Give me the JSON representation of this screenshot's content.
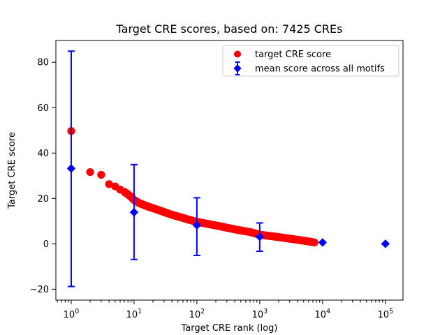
{
  "figure": {
    "background": "#ffffff"
  },
  "chart_data": {
    "type": "scatter",
    "title": "Target CRE scores, based on: 7425 CREs",
    "xlabel": "Target CRE rank (log)",
    "ylabel": "Target CRE score",
    "x_scale": "log",
    "y_scale": "linear",
    "xlim_log10": [
      -0.244,
      5.28
    ],
    "ylim": [
      -24.8,
      89.6
    ],
    "x_major_ticks": [
      1,
      10,
      100,
      1000,
      10000,
      100000
    ],
    "x_major_tick_exponents": [
      0,
      1,
      2,
      3,
      4,
      5
    ],
    "y_ticks": [
      -20,
      0,
      20,
      40,
      60,
      80
    ],
    "grid": false,
    "legend": {
      "position": "upper-right-inside",
      "entries": [
        {
          "label": "target CRE score",
          "marker": "circle",
          "color": "#ff0000"
        },
        {
          "label": "mean score across all motifs",
          "marker": "diamond-errorbar",
          "color": "#0000ff"
        }
      ]
    },
    "series": [
      {
        "name": "target CRE score",
        "kind": "scatter",
        "marker": "circle",
        "color": "#ff0000",
        "anchor_points": [
          [
            1,
            49.7
          ],
          [
            2,
            31.6
          ],
          [
            3,
            30.4
          ],
          [
            4,
            26.3
          ],
          [
            5,
            25.3
          ],
          [
            6,
            23.9
          ],
          [
            7,
            22.9
          ],
          [
            8,
            21.8
          ],
          [
            9,
            20.6
          ],
          [
            10,
            19.3
          ],
          [
            12,
            18.0
          ],
          [
            15,
            16.9
          ],
          [
            20,
            15.7
          ],
          [
            25,
            14.8
          ],
          [
            30,
            14.0
          ],
          [
            40,
            12.8
          ],
          [
            55,
            11.7
          ],
          [
            75,
            10.6
          ],
          [
            100,
            9.7
          ],
          [
            140,
            8.9
          ],
          [
            200,
            8.1
          ],
          [
            300,
            7.1
          ],
          [
            450,
            6.1
          ],
          [
            700,
            5.2
          ],
          [
            1000,
            4.0
          ],
          [
            1500,
            3.4
          ],
          [
            2200,
            2.8
          ],
          [
            3300,
            2.1
          ],
          [
            5000,
            1.4
          ],
          [
            7425,
            0.6
          ]
        ],
        "dense_band_range": [
          7,
          7425
        ],
        "total_points": 7425
      },
      {
        "name": "mean score across all motifs",
        "kind": "errorbar",
        "marker": "diamond",
        "color": "#0000ff",
        "points": [
          {
            "x": 1,
            "mean": 33.2,
            "lo": -18.8,
            "hi": 84.9
          },
          {
            "x": 10,
            "mean": 13.9,
            "lo": -6.9,
            "hi": 34.9
          },
          {
            "x": 100,
            "mean": 8.2,
            "lo": -5.1,
            "hi": 20.3
          },
          {
            "x": 1000,
            "mean": 3.1,
            "lo": -3.3,
            "hi": 9.2
          },
          {
            "x": 10000,
            "mean": 0.6,
            "lo": 0.6,
            "hi": 0.6
          },
          {
            "x": 100000,
            "mean": 0.0,
            "lo": 0.0,
            "hi": 0.0
          }
        ]
      }
    ],
    "colors": {
      "target_series": "#ff0000",
      "mean_series": "#0000ff",
      "axes": "#000000",
      "background": "#ffffff",
      "legend_border": "#cccccc"
    }
  }
}
